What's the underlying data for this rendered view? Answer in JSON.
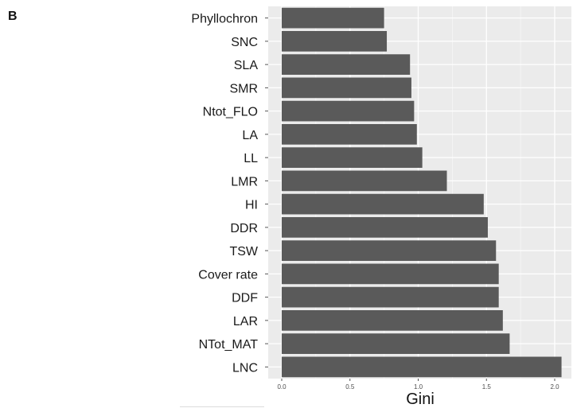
{
  "panel_label": "B",
  "chart_data": {
    "type": "bar",
    "orientation": "horizontal",
    "categories": [
      "Phyllochron",
      "SNC",
      "SLA",
      "SMR",
      "Ntot_FLO",
      "LA",
      "LL",
      "LMR",
      "HI",
      "DDR",
      "TSW",
      "Cover rate",
      "DDF",
      "LAR",
      "NTot_MAT",
      "LNC"
    ],
    "values": [
      0.75,
      0.77,
      0.94,
      0.95,
      0.97,
      0.99,
      1.03,
      1.21,
      1.48,
      1.51,
      1.57,
      1.59,
      1.59,
      1.62,
      1.67,
      2.05
    ],
    "xlabel": "Gini",
    "ylabel": "",
    "xlim": [
      0,
      2.05
    ],
    "xticks": [
      "0.0",
      "0.5",
      "1.0",
      "1.5",
      "2.0"
    ],
    "grid": true,
    "colors": {
      "bar": "#5a5a5a",
      "panel_background": "#ebebeb",
      "gridline": "#ffffff",
      "tick_label": "#4d4d4d",
      "category_label": "#1a1a1a"
    }
  }
}
